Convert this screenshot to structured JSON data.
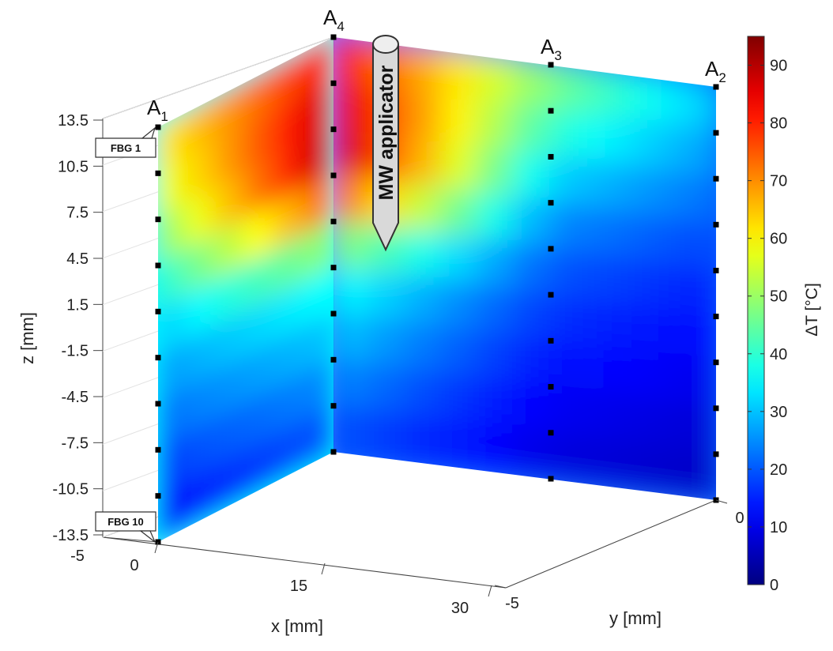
{
  "chart_data": {
    "type": "heatmap",
    "title": "",
    "xlabel": "x [mm]",
    "ylabel": "y [mm]",
    "zlabel": "z [mm]",
    "colorbar_label": "ΔT [°C]",
    "colormap": "jet",
    "clim": [
      0,
      95
    ],
    "colorbar_ticks": [
      "0",
      "10",
      "20",
      "30",
      "40",
      "50",
      "60",
      "70",
      "80",
      "90"
    ],
    "z_ticks": [
      "13.5",
      "10.5",
      "7.5",
      "4.5",
      "1.5",
      "-1.5",
      "-4.5",
      "-7.5",
      "-10.5",
      "-13.5"
    ],
    "x_ticks": [
      "0",
      "15",
      "30"
    ],
    "y_ticks": [
      "-5",
      "0"
    ],
    "x_extra_tick": "-5",
    "annotations": {
      "applicator": "MW applicator",
      "fbg_top": "FBG 1",
      "fbg_bottom": "FBG 10"
    },
    "arrays": [
      {
        "label": "A",
        "sub": "1"
      },
      {
        "label": "A",
        "sub": "4"
      },
      {
        "label": "A",
        "sub": "3"
      },
      {
        "label": "A",
        "sub": "2"
      }
    ],
    "fbg_z_positions": [
      13.5,
      10.5,
      7.5,
      4.5,
      1.5,
      -1.5,
      -4.5,
      -7.5,
      -10.5,
      -13.5
    ],
    "series": [
      {
        "values": [
          62,
          58,
          52,
          42,
          33,
          28,
          24,
          20,
          15,
          12
        ]
      },
      {
        "values": [
          78,
          86,
          92,
          90,
          60,
          40,
          33,
          28,
          22,
          18
        ]
      },
      {
        "values": [
          50,
          44,
          36,
          28,
          22,
          18,
          15,
          12,
          10,
          8
        ]
      },
      {
        "values": [
          32,
          28,
          24,
          20,
          16,
          13,
          11,
          9,
          7,
          6
        ]
      }
    ]
  }
}
